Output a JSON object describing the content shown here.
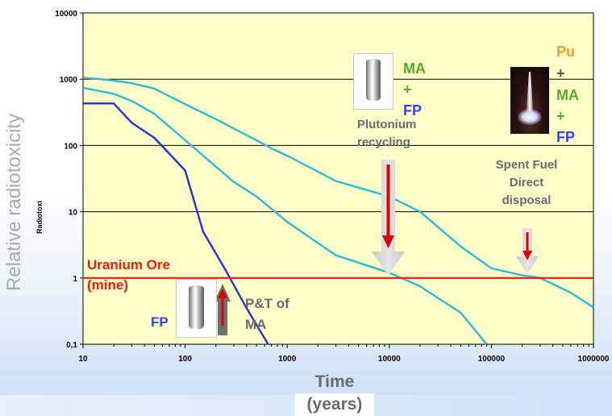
{
  "chart_data": {
    "type": "line",
    "xscale": "log",
    "yscale": "log",
    "xlim": [
      10,
      1000000
    ],
    "ylim": [
      0.1,
      10000
    ],
    "x_tick_labels": [
      "10",
      "100",
      "1000",
      "10000",
      "100000",
      "1000000"
    ],
    "y_tick_labels": [
      "0,1",
      "1",
      "10",
      "100",
      "1000",
      "10000"
    ],
    "ylabel": "Relative radiotoxicity",
    "ylabel_small": "Radiotoxi",
    "xlabel_line1": "Time",
    "xlabel_line2": "(years)",
    "grid": "horizontal",
    "series": [
      {
        "color": "#2bbbd8",
        "points": [
          [
            10,
            1050
          ],
          [
            15,
            1000
          ],
          [
            20,
            950
          ],
          [
            30,
            870
          ],
          [
            50,
            720
          ],
          [
            100,
            420
          ],
          [
            200,
            250
          ],
          [
            300,
            180
          ],
          [
            500,
            120
          ],
          [
            700,
            90
          ],
          [
            1000,
            70
          ],
          [
            3000,
            29
          ],
          [
            10000,
            17
          ],
          [
            20000,
            10
          ],
          [
            50000,
            3
          ],
          [
            100000,
            1.4
          ],
          [
            200000,
            1.1
          ],
          [
            300000,
            1.0
          ],
          [
            600000,
            0.6
          ],
          [
            1000000,
            0.36
          ]
        ]
      },
      {
        "color": "#2bbbd8",
        "points": [
          [
            10,
            740
          ],
          [
            20,
            600
          ],
          [
            30,
            470
          ],
          [
            50,
            300
          ],
          [
            100,
            120
          ],
          [
            300,
            28
          ],
          [
            500,
            17
          ],
          [
            1000,
            7
          ],
          [
            3000,
            2.2
          ],
          [
            10000,
            1.2
          ],
          [
            20000,
            0.75
          ],
          [
            50000,
            0.3
          ],
          [
            90000,
            0.1
          ]
        ]
      },
      {
        "color": "#2233cc",
        "points": [
          [
            10,
            430
          ],
          [
            20,
            430
          ],
          [
            30,
            220
          ],
          [
            50,
            130
          ],
          [
            100,
            42
          ],
          [
            150,
            5
          ],
          [
            250,
            1.3
          ],
          [
            400,
            0.35
          ],
          [
            650,
            0.1
          ]
        ]
      },
      {
        "color": "#ee1a0a",
        "points": [
          [
            10,
            1
          ],
          [
            1000000,
            1
          ]
        ]
      }
    ],
    "annotations": {
      "uranium_ore_line1": "Uranium Ore",
      "uranium_ore_line2": "(mine)",
      "fp_label": "FP",
      "pt_line1": "P&T of",
      "pt_line2": "MA",
      "ma_mid": "MA",
      "plus_mid": "+",
      "fp_mid": "FP",
      "plutonium_line1": "Plutonium",
      "plutonium_line2": "recycling",
      "pu_right": "Pu",
      "plus_right_1": "+",
      "ma_right": "MA",
      "plus_right_2": "+",
      "fp_right": "FP",
      "spent_line1": "Spent Fuel",
      "spent_line2": "Direct",
      "spent_line3": "disposal"
    },
    "colors": {
      "plot_bg": "#fffdc8",
      "uranium": "#ee1a0a",
      "ma_green": "#55aa22",
      "fp_blue": "#3344ee",
      "pu_orange": "#ff9922",
      "gray_text": "#666b73"
    }
  }
}
